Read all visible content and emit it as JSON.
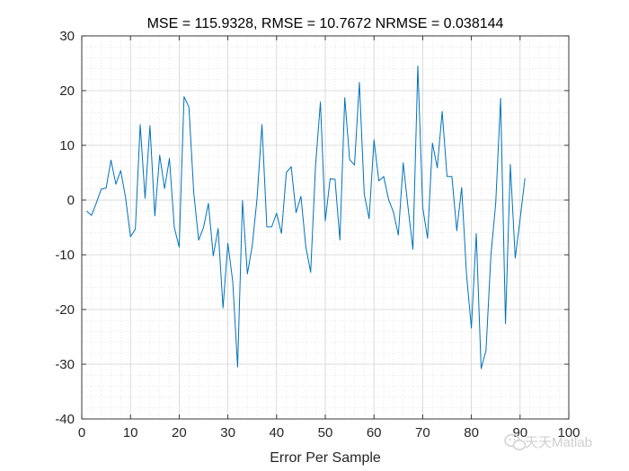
{
  "chart_data": {
    "type": "line",
    "title": "MSE = 115.9328, RMSE = 10.7672 NRMSE = 0.038144",
    "xlabel": "Error Per Sample",
    "ylabel": "",
    "xlim": [
      0,
      100
    ],
    "ylim": [
      -40,
      30
    ],
    "x_ticks": [
      0,
      10,
      20,
      30,
      40,
      50,
      60,
      70,
      80,
      90,
      100
    ],
    "y_ticks": [
      -40,
      -30,
      -20,
      -10,
      0,
      10,
      20,
      30
    ],
    "grid": true,
    "minor_grid": true,
    "line_color": "#0072BD",
    "series": [
      {
        "x": [
          1,
          2,
          3,
          4,
          5,
          6,
          7,
          8,
          9,
          10,
          11,
          12,
          13,
          14,
          15,
          16,
          17,
          18,
          19,
          20,
          21,
          22,
          23,
          24,
          25,
          26,
          27,
          28,
          29,
          30,
          31,
          32,
          33,
          34,
          35,
          36,
          37,
          38,
          39,
          40,
          41,
          42,
          43,
          44,
          45,
          46,
          47,
          48,
          49,
          50,
          51,
          52,
          53,
          54,
          55,
          56,
          57,
          58,
          59,
          60,
          61,
          62,
          63,
          64,
          65,
          66,
          67,
          68,
          69,
          70,
          71,
          72,
          73,
          74,
          75,
          76,
          77,
          78,
          79,
          80,
          81,
          82,
          83,
          84,
          85,
          86,
          87,
          88,
          89,
          90,
          91
        ],
        "values": [
          -2,
          -2.8,
          -0.5,
          2,
          2.2,
          7.3,
          2.9,
          5.4,
          0.4,
          -6.7,
          -5.3,
          13.8,
          0.3,
          13.6,
          -2.9,
          8.2,
          2.1,
          7.6,
          -5,
          -8.6,
          18.9,
          17,
          1.3,
          -7.3,
          -5,
          -0.6,
          -10.2,
          -5.2,
          -19.7,
          -7.9,
          -14.9,
          -30.5,
          -0.1,
          -13.5,
          -8.4,
          0.4,
          13.8,
          -4.9,
          -4.9,
          -2.4,
          -6.1,
          5,
          6.1,
          -2.3,
          0.7,
          -8.5,
          -13.2,
          6.3,
          17.9,
          -3.8,
          3.9,
          3.8,
          -7.3,
          18.7,
          7.4,
          6.4,
          21.5,
          1.1,
          -3.4,
          11,
          3.5,
          4.3,
          0.1,
          -2.2,
          -6.4,
          6.8,
          -1.4,
          -9,
          24.5,
          -1.3,
          -7,
          10.4,
          5.9,
          16.2,
          4.3,
          4.3,
          -5.6,
          2.3,
          -13.6,
          -23.4,
          -6.1,
          -30.8,
          -27.5,
          -10.2,
          -0.5,
          18.6,
          -22.6,
          6.5,
          -10.6,
          -3.5,
          4
        ]
      }
    ]
  },
  "watermark": {
    "icon": "wechat-icon",
    "text": "天天Matlab"
  }
}
